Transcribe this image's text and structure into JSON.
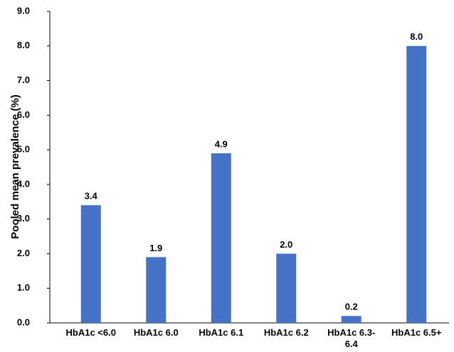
{
  "chart_data": {
    "type": "bar",
    "y_label": "Pooled mean prevalence (%)",
    "categories": [
      "HbA1c <6.0",
      "HbA1c 6.0",
      "HbA1c 6.1",
      "HbA1c 6.2",
      "HbA1c 6.3-6.4",
      "HbA1c 6.5+"
    ],
    "values": [
      3.4,
      1.9,
      4.9,
      2.0,
      0.2,
      8.0
    ],
    "value_labels": [
      "3.4",
      "1.9",
      "4.9",
      "2.0",
      "0.2",
      "8.0"
    ],
    "color": "#4472c4",
    "ylim": [
      0,
      9
    ],
    "yticks": [
      {
        "value": 0,
        "label": "0.0"
      },
      {
        "value": 1,
        "label": "1.0"
      },
      {
        "value": 2,
        "label": "2.0"
      },
      {
        "value": 3,
        "label": "3.0"
      },
      {
        "value": 4,
        "label": "4.0"
      },
      {
        "value": 5,
        "label": "5.0"
      },
      {
        "value": 6,
        "label": "6.0"
      },
      {
        "value": 7,
        "label": "7.0"
      },
      {
        "value": 8,
        "label": "8.0"
      },
      {
        "value": 9,
        "label": "9.0"
      }
    ],
    "grid": false
  }
}
